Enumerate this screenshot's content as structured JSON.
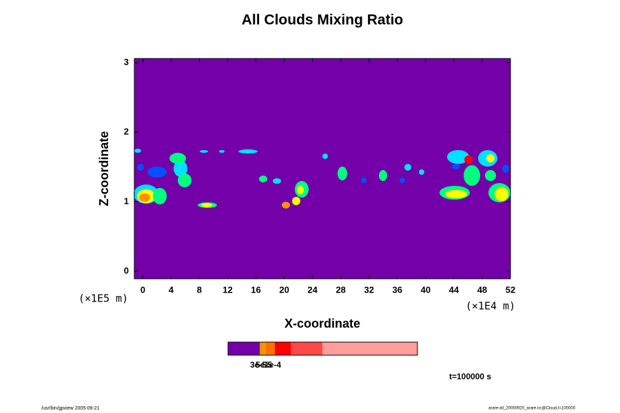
{
  "chart_data": {
    "type": "contour",
    "title": "All Clouds Mixing Ratio",
    "x_label": "X-coordinate",
    "y_label": "Z-coordinate",
    "x_unit": "(×1E4 m)",
    "y_unit": "(×1E5 m)",
    "xlim": [
      -1.2,
      52
    ],
    "ylim": [
      -0.11,
      3.06
    ],
    "xticks": [
      0,
      4,
      8,
      12,
      16,
      20,
      24,
      28,
      32,
      36,
      40,
      44,
      48,
      52
    ],
    "yticks": [
      0,
      1,
      2,
      3
    ],
    "background_color": "#7300a8",
    "colorbar": {
      "colors": [
        "#7300a8",
        "#c8a000",
        "#ff9000",
        "#ff7000",
        "#ff0000",
        "#ff4848",
        "#ff9c9c"
      ],
      "labels": [
        "3e-5",
        "5e-5",
        "1e-4"
      ]
    },
    "time_label": "t=100000 s",
    "footer_left": "/usr/bin/gpview 2005-09-21",
    "footer_right": "arare-all_20050920_arare.nc@Cloud,t=100000"
  }
}
